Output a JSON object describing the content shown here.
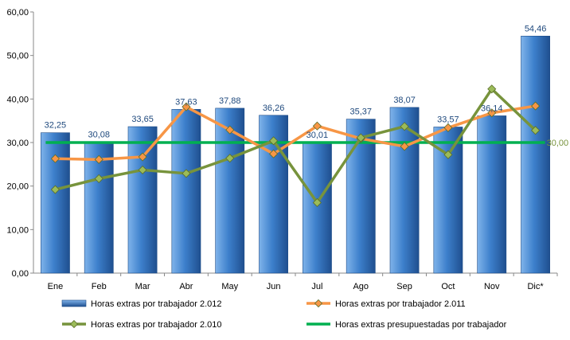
{
  "colors": {
    "bar_top": "#7fb3ea",
    "bar_mid": "#3d80cc",
    "bar_bottom": "#1f4f8f",
    "bar_stroke": "#1b4a86",
    "series_2011": "#f79646",
    "series_2010": "#77933c",
    "series_2010_marker": "#9bbb59",
    "budget": "#00b050",
    "bar_label": "#1f497d",
    "axis_text": "#000000",
    "axis_line": "#888888",
    "budget_label": "#77933c"
  },
  "chart_data": {
    "type": "bar",
    "categories": [
      "Ene",
      "Feb",
      "Mar",
      "Abr",
      "May",
      "Jun",
      "Jul",
      "Ago",
      "Sep",
      "Oct",
      "Nov",
      "Dic*"
    ],
    "ylim": [
      0,
      60
    ],
    "yticks": [
      "0,00",
      "10,00",
      "20,00",
      "30,00",
      "40,00",
      "50,00",
      "60,00"
    ],
    "grid": false,
    "legend_position": "bottom",
    "series": [
      {
        "name": "Horas extras por trabajador 2.012",
        "kind": "bar",
        "values": [
          32.25,
          30.08,
          33.65,
          37.63,
          37.88,
          36.26,
          30.01,
          35.37,
          38.07,
          33.57,
          36.14,
          54.46
        ],
        "labels": [
          "32,25",
          "30,08",
          "33,65",
          "37,63",
          "37,88",
          "36,26",
          "30,01",
          "35,37",
          "38,07",
          "33,57",
          "36,14",
          "54,46"
        ]
      },
      {
        "name": "Horas extras por trabajador 2.011",
        "kind": "line",
        "values": [
          26.3,
          26.1,
          26.7,
          38.2,
          32.9,
          27.4,
          33.8,
          30.9,
          29.1,
          33.4,
          36.8,
          38.4
        ]
      },
      {
        "name": "Horas extras por trabajador 2.010",
        "kind": "line",
        "values": [
          19.2,
          21.7,
          23.7,
          22.9,
          26.4,
          30.4,
          16.2,
          31.1,
          33.7,
          27.2,
          42.3,
          32.8
        ]
      },
      {
        "name": "Horas extras presupuestadas por trabajador",
        "kind": "flat",
        "value": 30.0,
        "label": "30,00"
      }
    ]
  }
}
